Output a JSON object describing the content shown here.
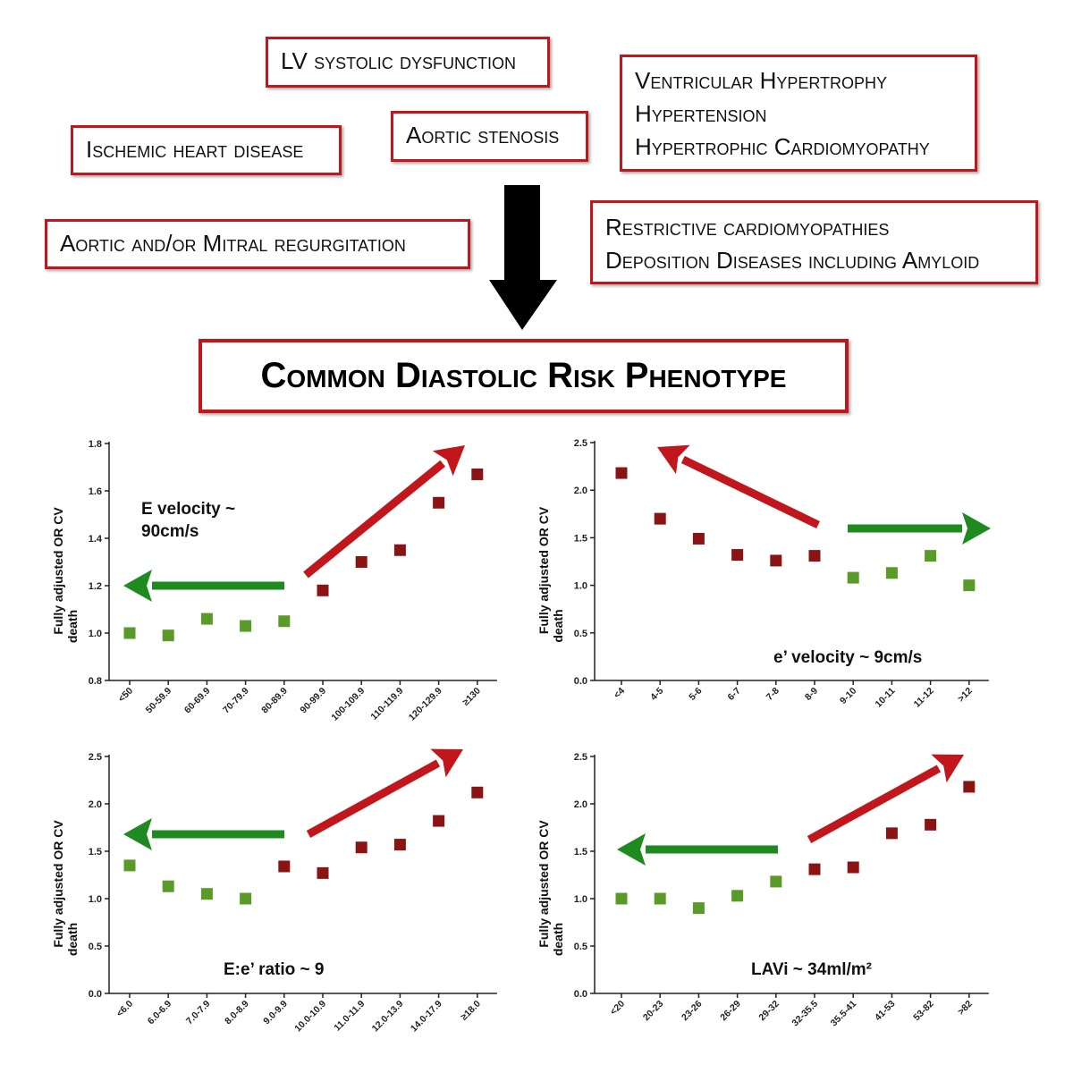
{
  "causes": {
    "lv_dysfunction": "LV systolic dysfunction",
    "ischemic": "Ischemic heart disease",
    "aortic_stenosis": "Aortic stenosis",
    "hypertrophy_lines": [
      "Ventricular Hypertrophy",
      "Hypertension",
      "Hypertrophic Cardiomyopathy"
    ],
    "regurgitation": "Aortic and/or Mitral regurgitation",
    "restrictive_lines": [
      "Restrictive cardiomyopathies",
      "Deposition Diseases including Amyloid"
    ]
  },
  "phenotype_title": "Common Diastolic Risk Phenotype",
  "colors": {
    "box_border": "#c0161c",
    "green": "#5a9a28",
    "red": "#8a1414",
    "arrow_red": "#c0161c",
    "arrow_green": "#1f8a1f"
  },
  "chart_data": [
    {
      "type": "scatter",
      "ylabel": [
        "Fully adjusted OR CV",
        "death"
      ],
      "annotation": [
        "E velocity ~",
        "90cm/s"
      ],
      "ylim": [
        0.8,
        1.8
      ],
      "yticks": [
        "0.8",
        "1.0",
        "1.2",
        "1.4",
        "1.6",
        "1.8"
      ],
      "categories": [
        "<50",
        "50-59.9",
        "60-69.9",
        "70-79.9",
        "80-89.9",
        "90-99.9",
        "100-109.9",
        "110-119.9",
        "120-129.9",
        "≥130"
      ],
      "values": [
        1.0,
        0.99,
        1.06,
        1.03,
        1.05,
        1.18,
        1.3,
        1.35,
        1.55,
        1.67
      ],
      "colors": [
        "green",
        "green",
        "green",
        "green",
        "green",
        "red",
        "red",
        "red",
        "red",
        "red"
      ]
    },
    {
      "type": "scatter",
      "ylabel": [
        "Fully adjusted OR CV",
        "death"
      ],
      "annotation": [
        "e’ velocity ~ 9cm/s"
      ],
      "ylim": [
        0.0,
        2.5
      ],
      "yticks": [
        "0.0",
        "0.5",
        "1.0",
        "1.5",
        "2.0",
        "2.5"
      ],
      "categories": [
        "<4",
        "4-5",
        "5-6",
        "6-7",
        "7-8",
        "8-9",
        "9-10",
        "10-11",
        "11-12",
        ">12"
      ],
      "values": [
        2.18,
        1.7,
        1.49,
        1.32,
        1.26,
        1.31,
        1.08,
        1.13,
        1.31,
        1.0
      ],
      "colors": [
        "red",
        "red",
        "red",
        "red",
        "red",
        "red",
        "green",
        "green",
        "green",
        "green"
      ]
    },
    {
      "type": "scatter",
      "ylabel": [
        "Fully adjusted OR CV",
        "death"
      ],
      "annotation": [
        "E:e’ ratio ~ 9"
      ],
      "ylim": [
        0.0,
        2.5
      ],
      "yticks": [
        "0.0",
        "0.5",
        "1.0",
        "1.5",
        "2.0",
        "2.5"
      ],
      "categories": [
        "<6.0",
        "6.0-6.9",
        "7.0-7.9",
        "8.0-8.9",
        "9.0-9.9",
        "10.0-10.9",
        "11.0-11.9",
        "12.0-13.9",
        "14.0-17.9",
        "≥18.0"
      ],
      "values": [
        1.35,
        1.13,
        1.05,
        1.0,
        1.34,
        1.27,
        1.54,
        1.57,
        1.82,
        2.12
      ],
      "colors": [
        "green",
        "green",
        "green",
        "green",
        "red",
        "red",
        "red",
        "red",
        "red",
        "red"
      ]
    },
    {
      "type": "scatter",
      "ylabel": [
        "Fully adjusted OR CV",
        "death"
      ],
      "annotation": [
        "LAVi ~ 34ml/m²"
      ],
      "ylim": [
        0.0,
        2.5
      ],
      "yticks": [
        "0.0",
        "0.5",
        "1.0",
        "1.5",
        "2.0",
        "2.5"
      ],
      "categories": [
        "<20",
        "20-23",
        "23-26",
        "26-29",
        "29-32",
        "32-35.5",
        "35.5-41",
        "41-53",
        "53-82",
        ">82"
      ],
      "values": [
        1.0,
        1.0,
        0.9,
        1.03,
        1.18,
        1.31,
        1.33,
        1.69,
        1.78,
        2.18
      ],
      "colors": [
        "green",
        "green",
        "green",
        "green",
        "green",
        "red",
        "red",
        "red",
        "red",
        "red"
      ]
    }
  ]
}
